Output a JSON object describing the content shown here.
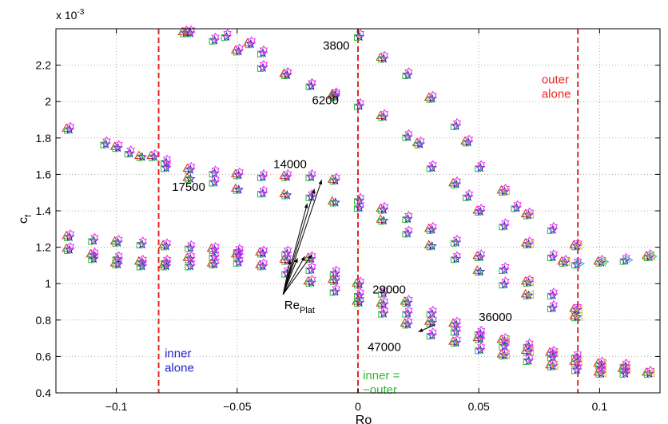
{
  "chart_data": {
    "type": "scatter",
    "title": "",
    "xlabel": "Ro",
    "ylabel": "c",
    "ylabel_sub": "f",
    "y_multiplier": "x 10",
    "y_multiplier_exp": "-3",
    "xlim": [
      -0.125,
      0.125
    ],
    "ylim": [
      0.4,
      2.4
    ],
    "xticks": [
      -0.1,
      -0.05,
      0,
      0.05,
      0.1
    ],
    "xtick_labels": [
      "−0.1",
      "−0.05",
      "0",
      "0.05",
      "0.1"
    ],
    "yticks": [
      0.4,
      0.6,
      0.8,
      1.0,
      1.2,
      1.4,
      1.6,
      1.8,
      2.0,
      2.2
    ],
    "ytick_labels": [
      "0.4",
      "0.6",
      "0.8",
      "1",
      "1.2",
      "1.4",
      "1.6",
      "1.8",
      "2",
      "2.2"
    ],
    "grid": "dotted",
    "colors": {
      "triangle_up": "#e8261f",
      "star": "#1f1fd0",
      "square": "#2fb82f",
      "hexagram": "#ee2aee",
      "triangle_left": "#c8c81e",
      "triangle_right": "#18c0c0",
      "dashed_line": "#e8261f",
      "inner_text": "#1f1fd0",
      "outer_text": "#e8261f",
      "equal_text": "#2fb82f"
    },
    "vlines": [
      {
        "x": -0.0825,
        "color": "#e8261f",
        "style": "dashed"
      },
      {
        "x": 0,
        "color": "#e8261f",
        "style": "dashed"
      },
      {
        "x": 0.091,
        "color": "#e8261f",
        "style": "dashed"
      }
    ],
    "region_labels": [
      {
        "lines": [
          "inner",
          "alone"
        ],
        "color": "#1f1fd0"
      },
      {
        "lines": [
          "outer",
          "alone"
        ],
        "color": "#e8261f"
      },
      {
        "lines": [
          "inner =",
          "−outer"
        ],
        "color": "#2fb82f"
      }
    ],
    "curve_labels": [
      "3800",
      "6200",
      "14000",
      "17500",
      "29000",
      "36000",
      "47000"
    ],
    "annotation": {
      "text": "Re",
      "sub": "Plat"
    },
    "curves": [
      {
        "label": "3800",
        "points": [
          [
            -0.072,
            2.38
          ],
          [
            -0.055,
            2.36
          ],
          [
            -0.045,
            2.32
          ],
          [
            -0.04,
            2.27
          ],
          [
            -0.03,
            2.15
          ],
          [
            -0.02,
            2.09
          ],
          [
            -0.01,
            2.03
          ],
          [
            0.0,
            2.36
          ],
          [
            0.01,
            2.24
          ],
          [
            0.02,
            2.15
          ],
          [
            0.03,
            2.02
          ],
          [
            0.04,
            1.87
          ],
          [
            0.045,
            1.78
          ],
          [
            0.05,
            1.64
          ],
          [
            0.06,
            1.51
          ],
          [
            0.065,
            1.42
          ],
          [
            0.07,
            1.38
          ],
          [
            0.08,
            1.3
          ],
          [
            0.09,
            1.21
          ]
        ]
      },
      {
        "label": "6200",
        "points": [
          [
            -0.07,
            2.38
          ],
          [
            -0.06,
            2.34
          ],
          [
            -0.05,
            2.28
          ],
          [
            -0.04,
            2.19
          ],
          [
            -0.03,
            2.15
          ],
          [
            -0.02,
            2.09
          ],
          [
            -0.01,
            2.04
          ],
          [
            0.0,
            1.98
          ],
          [
            0.01,
            1.92
          ],
          [
            0.02,
            1.81
          ],
          [
            0.025,
            1.77
          ],
          [
            0.03,
            1.64
          ],
          [
            0.04,
            1.55
          ],
          [
            0.045,
            1.48
          ],
          [
            0.05,
            1.4
          ],
          [
            0.06,
            1.32
          ],
          [
            0.07,
            1.22
          ],
          [
            0.08,
            1.15
          ],
          [
            0.085,
            1.12
          ],
          [
            0.09,
            1.11
          ],
          [
            0.1,
            1.12
          ],
          [
            0.11,
            1.13
          ],
          [
            0.12,
            1.15
          ]
        ]
      },
      {
        "label": "14000",
        "points": [
          [
            -0.12,
            1.85
          ],
          [
            -0.105,
            1.77
          ],
          [
            -0.1,
            1.75
          ],
          [
            -0.095,
            1.72
          ],
          [
            -0.085,
            1.7
          ],
          [
            -0.08,
            1.67
          ],
          [
            -0.07,
            1.63
          ],
          [
            -0.06,
            1.61
          ],
          [
            -0.05,
            1.6
          ],
          [
            -0.04,
            1.59
          ],
          [
            -0.03,
            1.59
          ],
          [
            -0.02,
            1.59
          ],
          [
            -0.01,
            1.57
          ],
          [
            0.0,
            1.46
          ],
          [
            0.01,
            1.41
          ],
          [
            0.02,
            1.36
          ],
          [
            0.03,
            1.3
          ],
          [
            0.04,
            1.23
          ],
          [
            0.05,
            1.15
          ],
          [
            0.06,
            1.08
          ],
          [
            0.07,
            1.01
          ],
          [
            0.08,
            0.94
          ],
          [
            0.09,
            0.86
          ]
        ]
      },
      {
        "label": "17500",
        "points": [
          [
            -0.09,
            1.7
          ],
          [
            -0.08,
            1.64
          ],
          [
            -0.07,
            1.58
          ],
          [
            -0.06,
            1.56
          ],
          [
            -0.05,
            1.52
          ],
          [
            -0.04,
            1.5
          ],
          [
            -0.03,
            1.49
          ],
          [
            -0.02,
            1.48
          ],
          [
            -0.01,
            1.45
          ],
          [
            0.0,
            1.42
          ],
          [
            0.01,
            1.35
          ],
          [
            0.02,
            1.28
          ],
          [
            0.03,
            1.21
          ],
          [
            0.04,
            1.14
          ],
          [
            0.05,
            1.07
          ],
          [
            0.06,
            1.0
          ],
          [
            0.07,
            0.94
          ],
          [
            0.08,
            0.87
          ],
          [
            0.09,
            0.82
          ]
        ]
      },
      {
        "label": "29000",
        "points": [
          [
            -0.12,
            1.26
          ],
          [
            -0.11,
            1.24
          ],
          [
            -0.1,
            1.23
          ],
          [
            -0.09,
            1.22
          ],
          [
            -0.08,
            1.21
          ],
          [
            -0.07,
            1.2
          ],
          [
            -0.06,
            1.19
          ],
          [
            -0.05,
            1.18
          ],
          [
            -0.04,
            1.17
          ],
          [
            -0.03,
            1.17
          ],
          [
            -0.02,
            1.14
          ],
          [
            -0.01,
            1.06
          ],
          [
            0.0,
            1.0
          ],
          [
            0.01,
            0.95
          ],
          [
            0.02,
            0.9
          ],
          [
            0.03,
            0.84
          ],
          [
            0.04,
            0.78
          ],
          [
            0.05,
            0.73
          ],
          [
            0.06,
            0.69
          ],
          [
            0.07,
            0.66
          ],
          [
            0.08,
            0.62
          ],
          [
            0.09,
            0.6
          ],
          [
            0.1,
            0.56
          ],
          [
            0.11,
            0.55
          ]
        ]
      },
      {
        "label": "36000",
        "points": [
          [
            -0.11,
            1.16
          ],
          [
            -0.1,
            1.14
          ],
          [
            -0.09,
            1.12
          ],
          [
            -0.08,
            1.12
          ],
          [
            -0.07,
            1.14
          ],
          [
            -0.06,
            1.15
          ],
          [
            -0.05,
            1.16
          ],
          [
            -0.04,
            1.17
          ],
          [
            -0.03,
            1.13
          ],
          [
            -0.02,
            1.08
          ],
          [
            -0.01,
            1.02
          ],
          [
            0.0,
            0.94
          ],
          [
            0.01,
            0.89
          ],
          [
            0.02,
            0.84
          ],
          [
            0.03,
            0.79
          ],
          [
            0.04,
            0.74
          ],
          [
            0.05,
            0.7
          ],
          [
            0.06,
            0.66
          ],
          [
            0.07,
            0.63
          ],
          [
            0.08,
            0.6
          ],
          [
            0.09,
            0.57
          ],
          [
            0.1,
            0.54
          ],
          [
            0.11,
            0.53
          ]
        ]
      },
      {
        "label": "47000",
        "points": [
          [
            -0.12,
            1.19
          ],
          [
            -0.11,
            1.14
          ],
          [
            -0.1,
            1.11
          ],
          [
            -0.09,
            1.1
          ],
          [
            -0.08,
            1.1
          ],
          [
            -0.07,
            1.1
          ],
          [
            -0.06,
            1.11
          ],
          [
            -0.05,
            1.12
          ],
          [
            -0.04,
            1.1
          ],
          [
            -0.03,
            1.06
          ],
          [
            -0.02,
            1.01
          ],
          [
            -0.01,
            0.96
          ],
          [
            0.0,
            0.9
          ],
          [
            0.01,
            0.84
          ],
          [
            0.02,
            0.78
          ],
          [
            0.03,
            0.72
          ],
          [
            0.04,
            0.68
          ],
          [
            0.05,
            0.64
          ],
          [
            0.06,
            0.61
          ],
          [
            0.07,
            0.58
          ],
          [
            0.08,
            0.55
          ],
          [
            0.09,
            0.53
          ],
          [
            0.1,
            0.51
          ],
          [
            0.11,
            0.51
          ],
          [
            0.12,
            0.51
          ]
        ]
      }
    ]
  }
}
